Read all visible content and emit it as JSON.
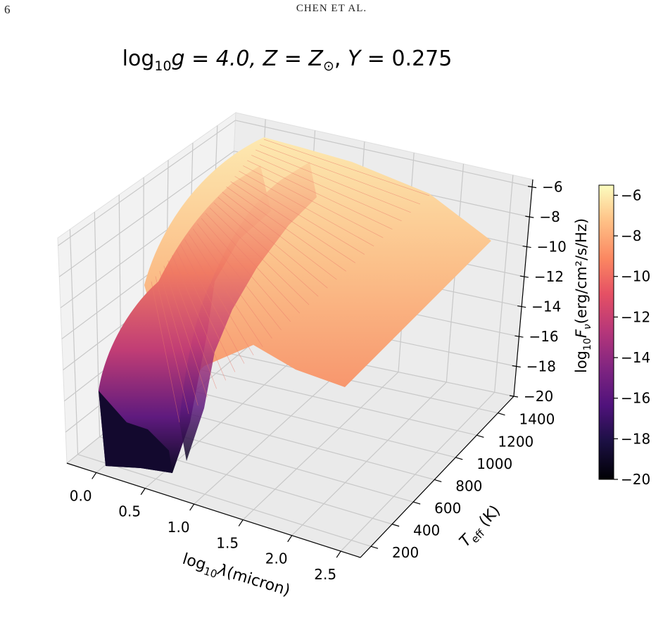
{
  "header": {
    "page_number": "6",
    "running_head": "CHEN ET AL."
  },
  "chart_data": {
    "type": "surface",
    "title_parts": [
      "log",
      "10",
      "g = 4.0,  ",
      "Z",
      " = ",
      "Z",
      "⊙",
      ",  ",
      "Y",
      " = 0.275"
    ],
    "x_axis": {
      "label_parts": [
        "log",
        "10",
        "λ",
        "(micron)"
      ],
      "range": [
        -0.3,
        2.7
      ],
      "ticks": [
        0.0,
        0.5,
        1.0,
        1.5,
        2.0,
        2.5
      ],
      "tick_labels": [
        "0.0",
        "0.5",
        "1.0",
        "1.5",
        "2.0",
        "2.5"
      ]
    },
    "y_axis": {
      "label_parts": [
        "T",
        "eff",
        " (K)"
      ],
      "range": [
        100,
        1550
      ],
      "ticks": [
        200,
        400,
        600,
        800,
        1000,
        1200,
        1400
      ],
      "tick_labels": [
        "200",
        "400",
        "600",
        "800",
        "1000",
        "1200",
        "1400"
      ]
    },
    "z_axis": {
      "label_parts": [
        "log",
        "10",
        "F",
        "ν",
        "(erg/cm²/s/Hz)"
      ],
      "range": [
        -20,
        -5.5
      ],
      "ticks": [
        -6,
        -8,
        -10,
        -12,
        -14,
        -16,
        -18,
        -20
      ],
      "tick_labels": [
        "−6",
        "−8",
        "−10",
        "−12",
        "−14",
        "−16",
        "−18",
        "−20"
      ]
    },
    "colorbar": {
      "colormap": "magma",
      "range": [
        -20,
        -5.5
      ],
      "ticks": [
        -6,
        -8,
        -10,
        -12,
        -14,
        -16,
        -18,
        -20
      ],
      "tick_labels": [
        "−6",
        "−8",
        "−10",
        "−12",
        "−14",
        "−16",
        "−18",
        "−20"
      ]
    },
    "surface_samples": {
      "description_source": "estimated",
      "teff": [
        200,
        600,
        1000,
        1400
      ],
      "log_lambda": [
        -0.1,
        0.3,
        0.6,
        1.0,
        1.5,
        2.0,
        2.5
      ],
      "log_flux": [
        [
          -19.5,
          -18.0,
          -16.5,
          -14.5,
          -14.0,
          -15.5,
          -17.5
        ],
        [
          -18.5,
          -13.0,
          -11.0,
          -11.0,
          -11.5,
          -13.5,
          -15.0
        ],
        [
          -16.0,
          -10.0,
          -8.0,
          -8.5,
          -9.5,
          -11.5,
          -13.0
        ],
        [
          -13.0,
          -8.0,
          -6.5,
          -7.0,
          -8.0,
          -9.5,
          -11.0
        ]
      ]
    }
  }
}
